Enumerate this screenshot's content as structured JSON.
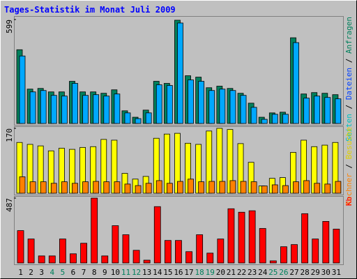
{
  "chart_data": [
    {
      "type": "bar",
      "title": "Tages-Statistik im Monat Juli 2009",
      "ylim": [
        0,
        599
      ],
      "yticks": [
        599
      ],
      "legend": [
        {
          "name": "Seiten",
          "color": "#00c0c0"
        },
        {
          "name": "Dateien",
          "color": "#0040ff"
        },
        {
          "name": "Anfragen",
          "color": "#00805c"
        }
      ],
      "legend_separator": " / ",
      "series": [
        {
          "name": "Anfragen",
          "color": "#00805c",
          "values": [
            425,
            198,
            202,
            182,
            182,
            243,
            182,
            182,
            174,
            194,
            73,
            36,
            77,
            243,
            231,
            595,
            275,
            267,
            206,
            215,
            202,
            174,
            117,
            36,
            61,
            65,
            494,
            170,
            178,
            174,
            166
          ]
        },
        {
          "name": "Dateien",
          "color": "#00a8ff",
          "values": [
            389,
            182,
            190,
            162,
            158,
            231,
            162,
            166,
            158,
            170,
            61,
            28,
            61,
            223,
            219,
            579,
            251,
            243,
            190,
            198,
            190,
            162,
            93,
            24,
            53,
            53,
            466,
            146,
            158,
            150,
            142
          ]
        }
      ]
    },
    {
      "type": "bar",
      "ylim": [
        0,
        170
      ],
      "yticks": [
        170
      ],
      "legend": [
        {
          "name": "Rechner",
          "color": "#ff8000"
        },
        {
          "name": "Besuche",
          "color": "#e0d000"
        }
      ],
      "legend_separator": " / ",
      "series": [
        {
          "name": "Besuche",
          "color": "#ffff00",
          "values": [
            133,
            128,
            124,
            111,
            118,
            115,
            120,
            122,
            141,
            139,
            52,
            37,
            44,
            144,
            155,
            157,
            131,
            128,
            163,
            170,
            167,
            130,
            81,
            19,
            39,
            41,
            107,
            139,
            122,
            126,
            133
          ]
        },
        {
          "name": "Rechner",
          "color": "#ff8000",
          "values": [
            43,
            30,
            30,
            26,
            30,
            26,
            30,
            31,
            30,
            30,
            24,
            20,
            26,
            33,
            26,
            31,
            37,
            30,
            31,
            31,
            33,
            31,
            30,
            19,
            22,
            20,
            30,
            33,
            26,
            24,
            31
          ]
        }
      ]
    },
    {
      "type": "bar",
      "ylim": [
        0,
        487
      ],
      "yticks": [
        487
      ],
      "legend": [
        {
          "name": "Kb",
          "color": "#ff0000"
        }
      ],
      "legend_separator": " / ",
      "series": [
        {
          "name": "Kb",
          "color": "#ff0000",
          "values": [
            243,
            180,
            53,
            53,
            180,
            69,
            148,
            487,
            53,
            280,
            212,
            95,
            21,
            423,
            169,
            169,
            85,
            212,
            74,
            180,
            407,
            381,
            392,
            259,
            16,
            122,
            138,
            370,
            180,
            312,
            254
          ]
        }
      ],
      "categories": [
        "1",
        "2",
        "3",
        "4",
        "5",
        "6",
        "7",
        "8",
        "9",
        "10",
        "11",
        "12",
        "13",
        "14",
        "15",
        "16",
        "17",
        "18",
        "19",
        "20",
        "21",
        "22",
        "23",
        "24",
        "25",
        "26",
        "27",
        "28",
        "29",
        "30",
        "31"
      ],
      "category_colors": [
        "#000000",
        "#000000",
        "#000000",
        "#00805c",
        "#00805c",
        "#000000",
        "#000000",
        "#000000",
        "#000000",
        "#000000",
        "#00805c",
        "#00805c",
        "#000000",
        "#000000",
        "#000000",
        "#000000",
        "#000000",
        "#00805c",
        "#00805c",
        "#000000",
        "#000000",
        "#000000",
        "#000000",
        "#000000",
        "#00805c",
        "#00805c",
        "#000000",
        "#000000",
        "#000000",
        "#000000",
        "#000000"
      ]
    }
  ]
}
